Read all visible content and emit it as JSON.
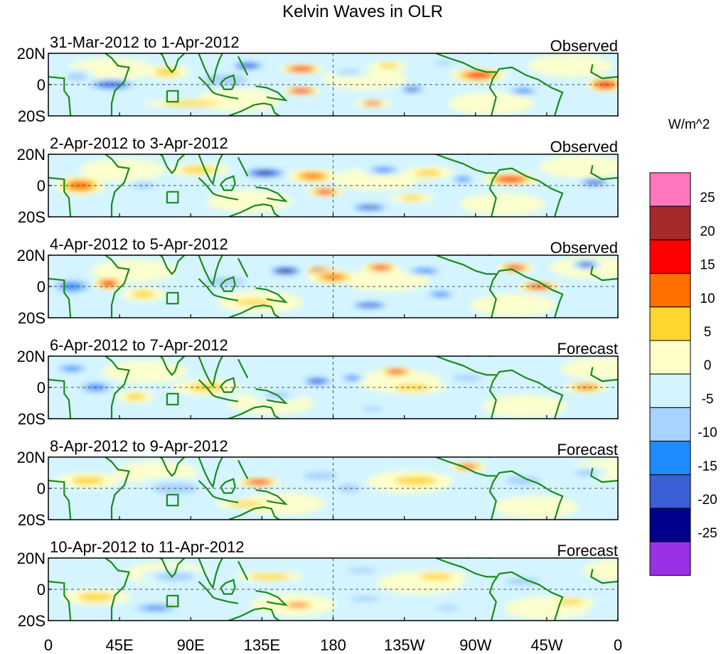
{
  "chart_data": {
    "type": "heatmap",
    "title": "Kelvin Waves in OLR",
    "variable": "OLR anomaly (Kelvin wave filtered)",
    "y_tick_labels": [
      "20N",
      "0",
      "20S"
    ],
    "y_range": [
      -20,
      20
    ],
    "x_tick_labels": [
      "0",
      "45E",
      "90E",
      "135E",
      "180",
      "135W",
      "90W",
      "45W",
      "0"
    ],
    "x_range": [
      0,
      360
    ],
    "colorbar": {
      "units": "W/m^2",
      "tick_labels": [
        "25",
        "20",
        "15",
        "10",
        "5",
        "0",
        "-5",
        "-10",
        "-15",
        "-20",
        "-25"
      ],
      "levels": [
        -25,
        -20,
        -15,
        -10,
        -5,
        0,
        5,
        10,
        15,
        20,
        25
      ],
      "colors": [
        "#9b30e6",
        "#00008c",
        "#3a5fd6",
        "#1e8cff",
        "#a8d2ff",
        "#d4f5ff",
        "#ffffc8",
        "#ffd62e",
        "#ff7000",
        "#ff0000",
        "#a52a2a",
        "#ff77bf"
      ]
    },
    "panels": [
      {
        "date_label": "31-Mar-2012 to 1-Apr-2012",
        "status": "Observed",
        "anomalies": [
          {
            "lon": 40,
            "lat": 0,
            "value": -18,
            "w": 18,
            "h": 8
          },
          {
            "lon": 18,
            "lat": 5,
            "value": -8,
            "w": 12,
            "h": 10
          },
          {
            "lon": 75,
            "lat": 8,
            "value": 6,
            "w": 14,
            "h": 9
          },
          {
            "lon": 112,
            "lat": 3,
            "value": -10,
            "w": 22,
            "h": 12
          },
          {
            "lon": 126,
            "lat": 12,
            "value": -20,
            "w": 12,
            "h": 6
          },
          {
            "lon": 160,
            "lat": 10,
            "value": 17,
            "w": 14,
            "h": 6
          },
          {
            "lon": 160,
            "lat": -4,
            "value": 19,
            "w": 12,
            "h": 5
          },
          {
            "lon": 190,
            "lat": 8,
            "value": -7,
            "w": 14,
            "h": 6
          },
          {
            "lon": 215,
            "lat": 12,
            "value": 7,
            "w": 12,
            "h": 6
          },
          {
            "lon": 230,
            "lat": -3,
            "value": -17,
            "w": 10,
            "h": 5
          },
          {
            "lon": 250,
            "lat": 14,
            "value": -7,
            "w": 12,
            "h": 5
          },
          {
            "lon": 272,
            "lat": 6,
            "value": 15,
            "w": 18,
            "h": 9
          },
          {
            "lon": 300,
            "lat": -4,
            "value": -14,
            "w": 12,
            "h": 6
          },
          {
            "lon": 352,
            "lat": 0,
            "value": 18,
            "w": 12,
            "h": 9
          },
          {
            "lon": 205,
            "lat": -12,
            "value": 10,
            "w": 12,
            "h": 5
          },
          {
            "lon": 90,
            "lat": -12,
            "value": 5,
            "w": 30,
            "h": 5
          }
        ]
      },
      {
        "date_label": "2-Apr-2012 to 3-Apr-2012",
        "status": "Observed",
        "anomalies": [
          {
            "lon": 20,
            "lat": 0,
            "value": 26,
            "w": 8,
            "h": 6
          },
          {
            "lon": 20,
            "lat": 0,
            "value": 14,
            "w": 16,
            "h": 12
          },
          {
            "lon": 60,
            "lat": 0,
            "value": -8,
            "w": 14,
            "h": 8
          },
          {
            "lon": 95,
            "lat": 10,
            "value": 6,
            "w": 20,
            "h": 8
          },
          {
            "lon": 137,
            "lat": 8,
            "value": -21,
            "w": 16,
            "h": 7
          },
          {
            "lon": 167,
            "lat": 8,
            "value": 26,
            "w": 8,
            "h": 5
          },
          {
            "lon": 167,
            "lat": 6,
            "value": 12,
            "w": 16,
            "h": 9
          },
          {
            "lon": 175,
            "lat": -4,
            "value": 15,
            "w": 12,
            "h": 6
          },
          {
            "lon": 203,
            "lat": -14,
            "value": -20,
            "w": 14,
            "h": 5
          },
          {
            "lon": 212,
            "lat": 10,
            "value": -12,
            "w": 14,
            "h": 7
          },
          {
            "lon": 240,
            "lat": 8,
            "value": 8,
            "w": 16,
            "h": 8
          },
          {
            "lon": 262,
            "lat": 4,
            "value": -12,
            "w": 10,
            "h": 6
          },
          {
            "lon": 292,
            "lat": 4,
            "value": 16,
            "w": 18,
            "h": 8
          },
          {
            "lon": 345,
            "lat": 2,
            "value": -17,
            "w": 12,
            "h": 6
          },
          {
            "lon": 230,
            "lat": -8,
            "value": 7,
            "w": 14,
            "h": 6
          }
        ]
      },
      {
        "date_label": "4-Apr-2012 to 5-Apr-2012",
        "status": "Observed",
        "anomalies": [
          {
            "lon": 15,
            "lat": 0,
            "value": -24,
            "w": 8,
            "h": 6
          },
          {
            "lon": 15,
            "lat": 0,
            "value": -13,
            "w": 16,
            "h": 12
          },
          {
            "lon": 38,
            "lat": 2,
            "value": 16,
            "w": 10,
            "h": 8
          },
          {
            "lon": 60,
            "lat": -5,
            "value": 7,
            "w": 14,
            "h": 9
          },
          {
            "lon": 112,
            "lat": 3,
            "value": -9,
            "w": 22,
            "h": 10
          },
          {
            "lon": 150,
            "lat": 10,
            "value": -24,
            "w": 12,
            "h": 6
          },
          {
            "lon": 172,
            "lat": 10,
            "value": 22,
            "w": 10,
            "h": 5
          },
          {
            "lon": 180,
            "lat": 6,
            "value": 12,
            "w": 16,
            "h": 9
          },
          {
            "lon": 210,
            "lat": 12,
            "value": 16,
            "w": 12,
            "h": 6
          },
          {
            "lon": 203,
            "lat": -12,
            "value": -20,
            "w": 14,
            "h": 5
          },
          {
            "lon": 238,
            "lat": 10,
            "value": -14,
            "w": 14,
            "h": 6
          },
          {
            "lon": 248,
            "lat": -5,
            "value": -13,
            "w": 12,
            "h": 6
          },
          {
            "lon": 295,
            "lat": 12,
            "value": 16,
            "w": 12,
            "h": 6
          },
          {
            "lon": 310,
            "lat": 0,
            "value": 17,
            "w": 14,
            "h": 6
          },
          {
            "lon": 340,
            "lat": 14,
            "value": -17,
            "w": 10,
            "h": 6
          },
          {
            "lon": 130,
            "lat": -10,
            "value": 5,
            "w": 20,
            "h": 6
          }
        ]
      },
      {
        "date_label": "6-Apr-2012 to 7-Apr-2012",
        "status": "Forecast",
        "anomalies": [
          {
            "lon": 15,
            "lat": 12,
            "value": -12,
            "w": 14,
            "h": 7
          },
          {
            "lon": 30,
            "lat": 0,
            "value": -13,
            "w": 14,
            "h": 9
          },
          {
            "lon": 55,
            "lat": -6,
            "value": 8,
            "w": 12,
            "h": 8
          },
          {
            "lon": 100,
            "lat": 0,
            "value": 7,
            "w": 22,
            "h": 10
          },
          {
            "lon": 145,
            "lat": -5,
            "value": -7,
            "w": 16,
            "h": 8
          },
          {
            "lon": 170,
            "lat": 4,
            "value": -16,
            "w": 12,
            "h": 7
          },
          {
            "lon": 192,
            "lat": 6,
            "value": -12,
            "w": 10,
            "h": 6
          },
          {
            "lon": 220,
            "lat": 10,
            "value": 15,
            "w": 12,
            "h": 6
          },
          {
            "lon": 230,
            "lat": 0,
            "value": 7,
            "w": 22,
            "h": 8
          },
          {
            "lon": 265,
            "lat": 6,
            "value": -8,
            "w": 18,
            "h": 8
          },
          {
            "lon": 205,
            "lat": -14,
            "value": -9,
            "w": 12,
            "h": 4
          },
          {
            "lon": 340,
            "lat": 0,
            "value": 12,
            "w": 14,
            "h": 7
          }
        ]
      },
      {
        "date_label": "8-Apr-2012 to 9-Apr-2012",
        "status": "Forecast",
        "anomalies": [
          {
            "lon": 25,
            "lat": 5,
            "value": 7,
            "w": 20,
            "h": 10
          },
          {
            "lon": 80,
            "lat": 0,
            "value": -7,
            "w": 28,
            "h": 14
          },
          {
            "lon": 125,
            "lat": -10,
            "value": 6,
            "w": 20,
            "h": 6
          },
          {
            "lon": 133,
            "lat": 4,
            "value": 16,
            "w": 14,
            "h": 6
          },
          {
            "lon": 172,
            "lat": 8,
            "value": -10,
            "w": 18,
            "h": 8
          },
          {
            "lon": 190,
            "lat": 0,
            "value": -7,
            "w": 14,
            "h": 10
          },
          {
            "lon": 232,
            "lat": 5,
            "value": 6,
            "w": 24,
            "h": 10
          },
          {
            "lon": 265,
            "lat": 14,
            "value": 14,
            "w": 12,
            "h": 6
          },
          {
            "lon": 300,
            "lat": 5,
            "value": -6,
            "w": 20,
            "h": 10
          },
          {
            "lon": 340,
            "lat": 10,
            "value": -8,
            "w": 14,
            "h": 8
          }
        ]
      },
      {
        "date_label": "10-Apr-2012 to 11-Apr-2012",
        "status": "Forecast",
        "anomalies": [
          {
            "lon": 30,
            "lat": -5,
            "value": 7,
            "w": 22,
            "h": 10
          },
          {
            "lon": 68,
            "lat": -12,
            "value": -12,
            "w": 20,
            "h": 7
          },
          {
            "lon": 80,
            "lat": 8,
            "value": -6,
            "w": 22,
            "h": 10
          },
          {
            "lon": 140,
            "lat": 8,
            "value": 9,
            "w": 22,
            "h": 6
          },
          {
            "lon": 158,
            "lat": -10,
            "value": 10,
            "w": 14,
            "h": 6
          },
          {
            "lon": 198,
            "lat": 12,
            "value": -8,
            "w": 18,
            "h": 6
          },
          {
            "lon": 200,
            "lat": -6,
            "value": -9,
            "w": 16,
            "h": 6
          },
          {
            "lon": 245,
            "lat": 8,
            "value": 7,
            "w": 20,
            "h": 8
          },
          {
            "lon": 252,
            "lat": -12,
            "value": -8,
            "w": 14,
            "h": 6
          },
          {
            "lon": 300,
            "lat": 5,
            "value": -6,
            "w": 20,
            "h": 8
          },
          {
            "lon": 330,
            "lat": -8,
            "value": 6,
            "w": 16,
            "h": 6
          }
        ]
      }
    ]
  }
}
